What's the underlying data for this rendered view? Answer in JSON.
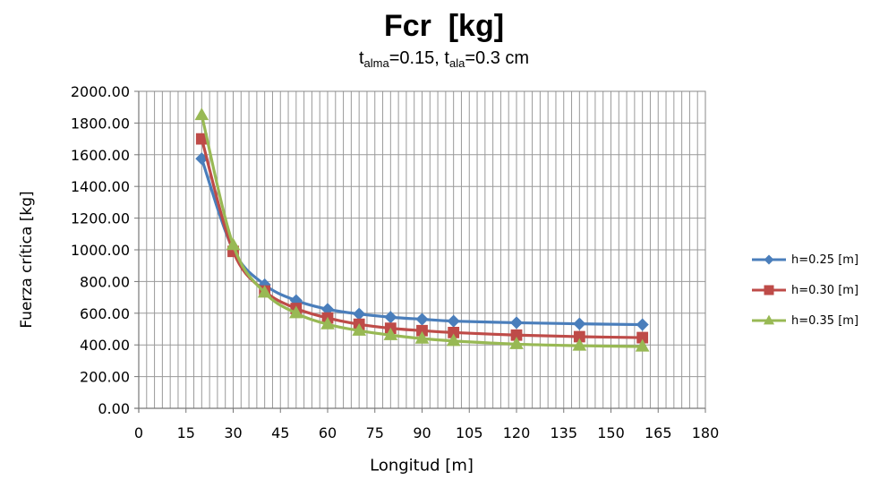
{
  "title": "Fcr  [kg]",
  "subtitle": {
    "t1_base": "t",
    "t1_sub": "alma",
    "t1_value": "=0.15, ",
    "t2_base": "t",
    "t2_sub": "ala",
    "t2_value": "=0.3 cm"
  },
  "chart_data": {
    "type": "line",
    "title": "Fcr  [kg]",
    "xlabel": "Longitud [m]",
    "ylabel": "Fuerza crítica [kg]",
    "xlim": [
      0,
      180
    ],
    "ylim": [
      0,
      2000
    ],
    "xticks": [
      "0",
      "15",
      "30",
      "45",
      "60",
      "75",
      "90",
      "105",
      "120",
      "135",
      "150",
      "165",
      "180"
    ],
    "yticks": [
      "0.00",
      "200.00",
      "400.00",
      "600.00",
      "800.00",
      "1000.00",
      "1200.00",
      "1400.00",
      "1600.00",
      "1800.00",
      "2000.00"
    ],
    "grid": true,
    "legend_position": "right",
    "x": [
      20,
      30,
      40,
      50,
      60,
      70,
      80,
      90,
      100,
      120,
      140,
      160
    ],
    "series": [
      {
        "name": "h=0.25 [m]",
        "color": "#4a7ebb",
        "marker": "diamond",
        "values": [
          1575,
          1000,
          780,
          680,
          625,
          595,
          575,
          562,
          550,
          540,
          533,
          528
        ]
      },
      {
        "name": "h=0.30 [m]",
        "color": "#be4b48",
        "marker": "square",
        "values": [
          1700,
          990,
          740,
          630,
          570,
          530,
          505,
          490,
          478,
          462,
          452,
          446
        ]
      },
      {
        "name": "h=0.35 [m]",
        "color": "#98b954",
        "marker": "triangle",
        "values": [
          1850,
          1030,
          730,
          600,
          530,
          490,
          462,
          440,
          425,
          405,
          395,
          390
        ]
      }
    ]
  }
}
